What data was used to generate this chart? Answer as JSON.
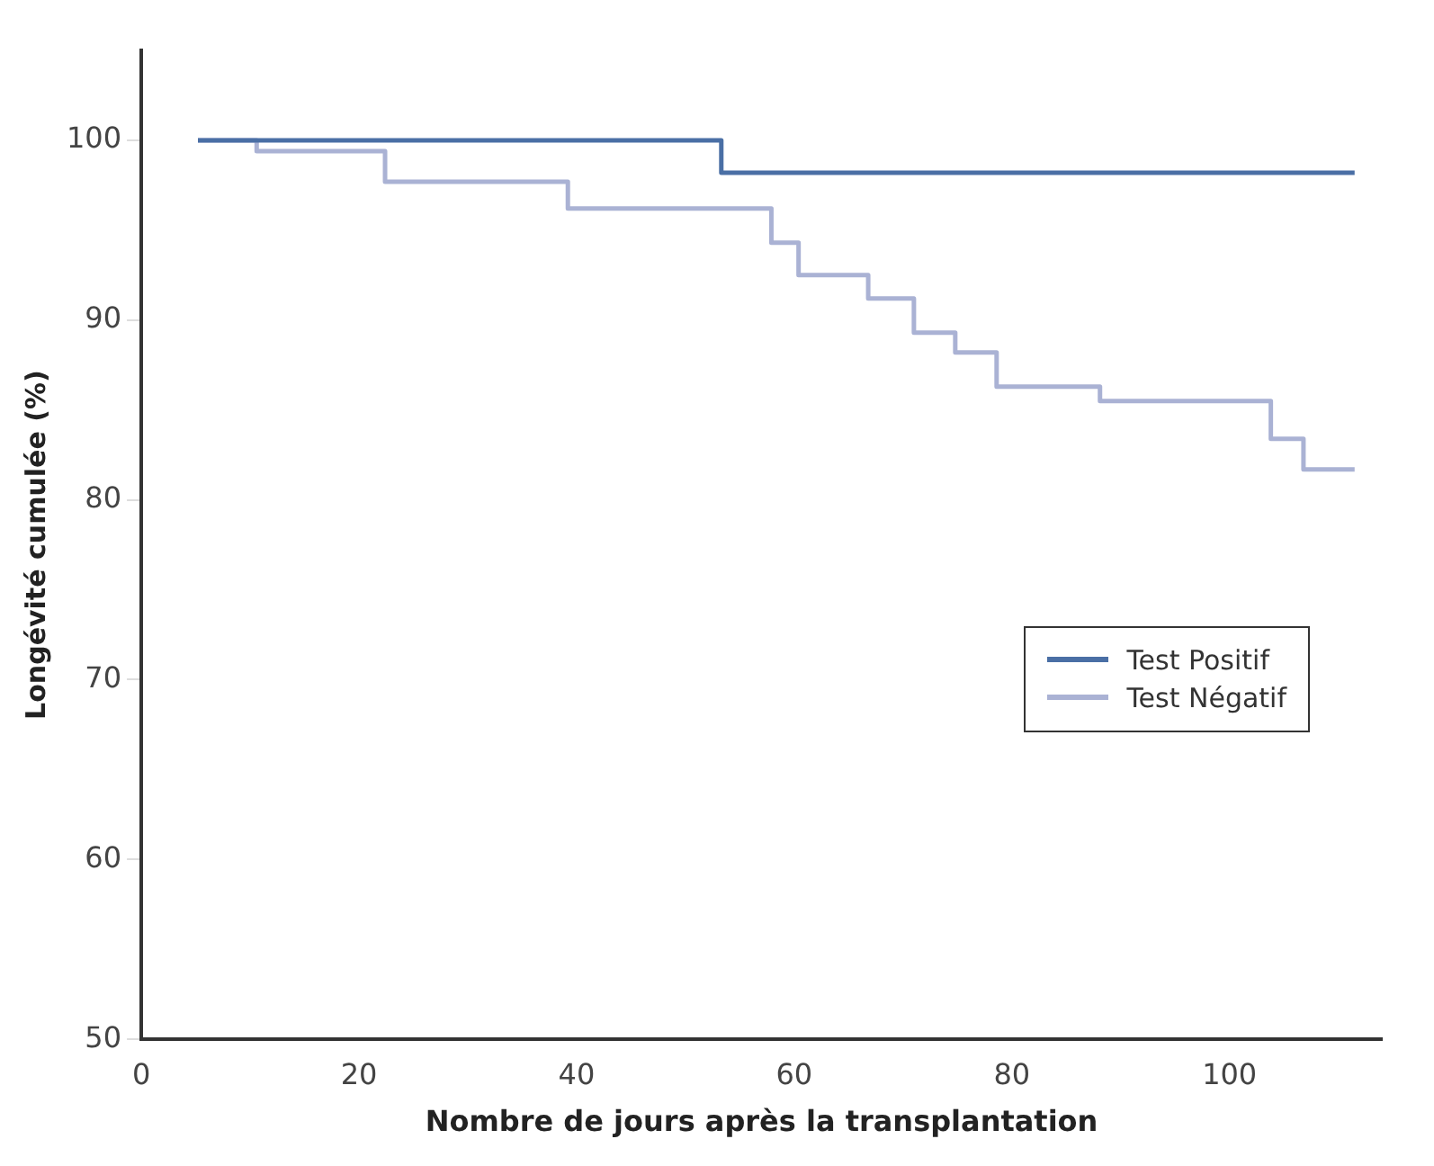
{
  "chart_data": {
    "type": "step",
    "xlabel": "Nombre de jours après la transplantation",
    "ylabel": "Longévité cumulée (%)",
    "xlim": [
      0,
      114
    ],
    "xticks": [
      0,
      20,
      40,
      60,
      80,
      100
    ],
    "ylim": [
      50,
      105
    ],
    "yticks": [
      50,
      60,
      70,
      80,
      90,
      100
    ],
    "grid": false,
    "legend": "bottom right",
    "series": [
      {
        "name": "Test Positif",
        "color": "#4a6fa5",
        "x": [
          5.2,
          53.3,
          111.5
        ],
        "values": [
          100,
          98.2,
          98.2
        ]
      },
      {
        "name": "Test Négatif",
        "color": "#aab2d4",
        "x": [
          5.2,
          10.6,
          22.4,
          39.2,
          57.9,
          60.4,
          66.8,
          71,
          74.8,
          78.6,
          88.1,
          103.8,
          106.8,
          111.5
        ],
        "values": [
          100,
          99.4,
          97.7,
          96.2,
          94.3,
          92.5,
          91.2,
          89.3,
          88.2,
          86.3,
          85.5,
          83.4,
          81.7,
          81.7
        ]
      }
    ]
  }
}
